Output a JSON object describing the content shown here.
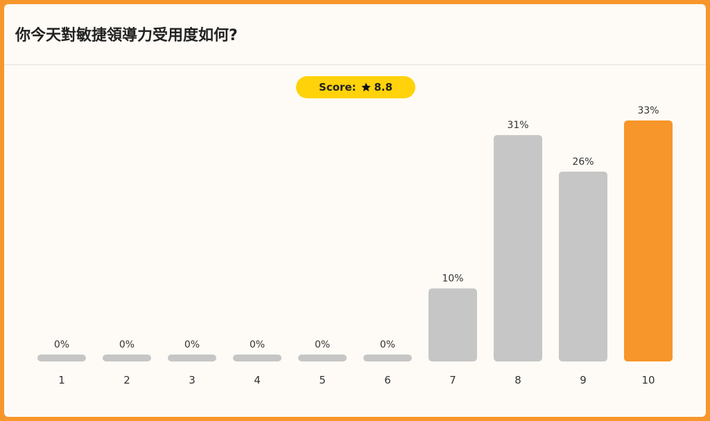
{
  "title": "你今天對敏捷領導力受用度如何?",
  "score": {
    "label": "Score:",
    "icon": "star-icon",
    "value": "8.8"
  },
  "colors": {
    "background": "#F7962A",
    "card": "#FEFBF6",
    "bar_default": "#C6C6C6",
    "bar_highlight": "#F7962A",
    "score_pill": "#FFD20A"
  },
  "chart_data": {
    "type": "bar",
    "title": "你今天對敏捷領導力受用度如何?",
    "categories": [
      "1",
      "2",
      "3",
      "4",
      "5",
      "6",
      "7",
      "8",
      "9",
      "10"
    ],
    "values": [
      0,
      0,
      0,
      0,
      0,
      0,
      10,
      31,
      26,
      33
    ],
    "value_labels": [
      "0%",
      "0%",
      "0%",
      "0%",
      "0%",
      "0%",
      "10%",
      "31%",
      "26%",
      "33%"
    ],
    "unit": "%",
    "highlight_category": "10",
    "xlabel": "",
    "ylabel": "",
    "ylim": [
      0,
      33
    ],
    "grid": false,
    "legend": "none"
  }
}
